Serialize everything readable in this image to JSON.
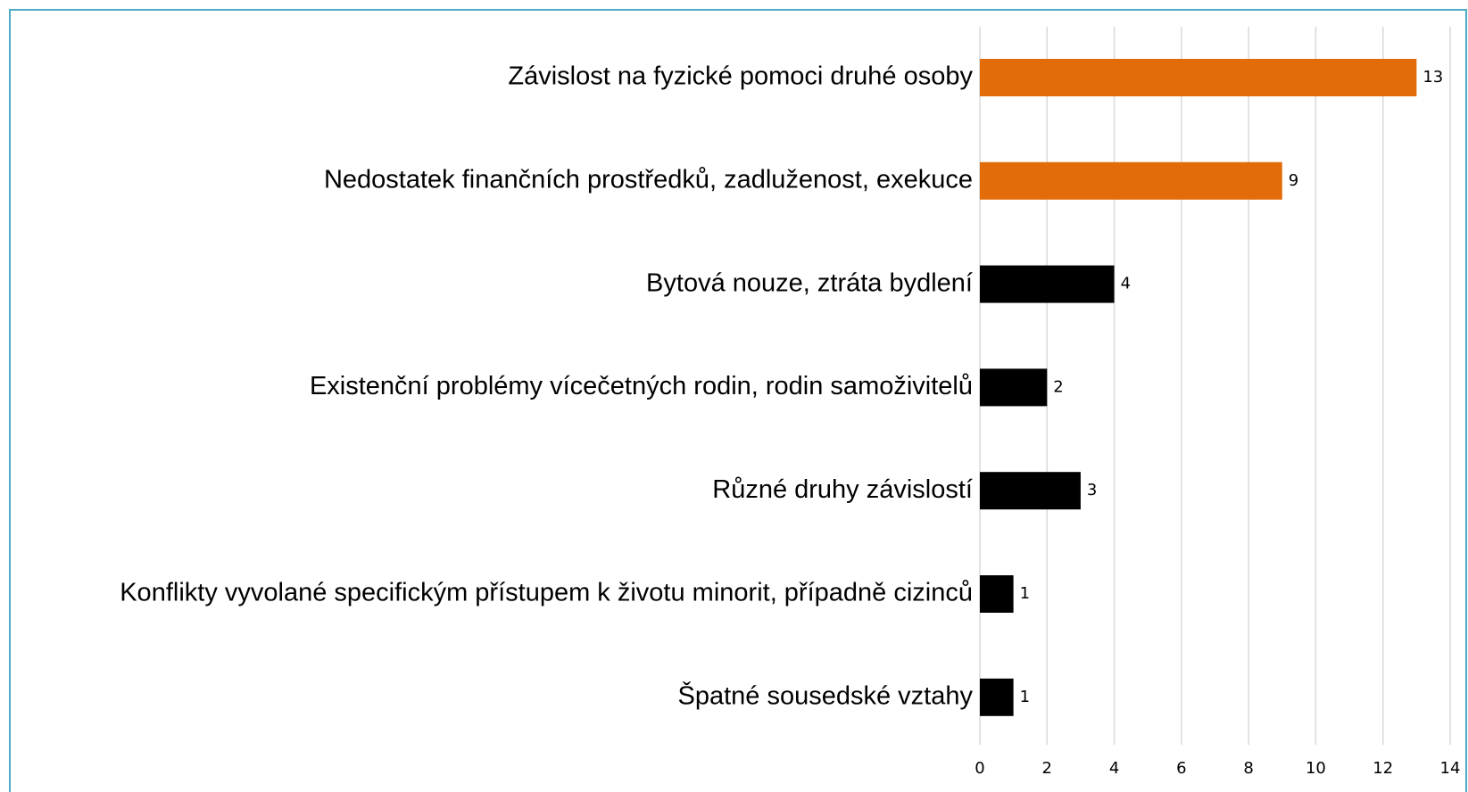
{
  "chart_data": {
    "type": "hbar",
    "categories": [
      "Závislost na fyzické pomoci druhé osoby",
      "Nedostatek finančních prostředků, zadluženost, exekuce",
      "Bytová nouze, ztráta bydlení",
      "Existenční problémy vícečetných rodin, rodin samoživitelů",
      "Různé druhy závislostí",
      "Konflikty vyvolané specifickým přístupem k životu minorit, případně cizinců",
      "Špatné sousedské vztahy"
    ],
    "values": [
      13,
      9,
      4,
      2,
      3,
      1,
      1
    ],
    "colors": [
      "#e36c0a",
      "#e36c0a",
      "#000000",
      "#000000",
      "#000000",
      "#000000",
      "#000000"
    ],
    "xlim": [
      0,
      14
    ],
    "xticks": [
      0,
      2,
      4,
      6,
      8,
      10,
      12,
      14
    ],
    "grid": true
  }
}
